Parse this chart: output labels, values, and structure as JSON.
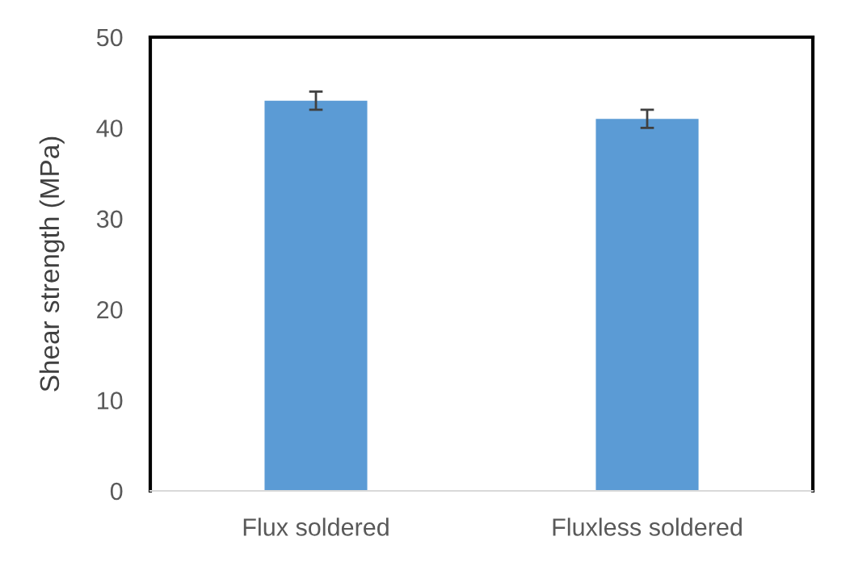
{
  "chart_data": {
    "type": "bar",
    "ylabel": "Shear strength (MPa)",
    "categories": [
      "Flux soldered",
      "Fluxless soldered"
    ],
    "values": [
      43,
      41
    ],
    "errors": [
      1,
      1
    ],
    "color": "#5b9bd5",
    "ylim": [
      0,
      50
    ],
    "yticks": [
      0,
      10,
      20,
      30,
      40,
      50
    ],
    "grid": false
  }
}
